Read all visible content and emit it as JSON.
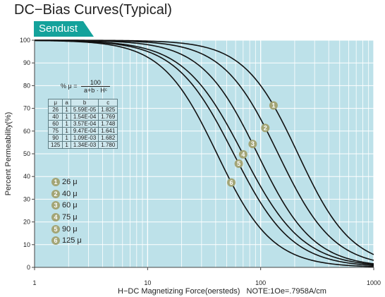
{
  "title": "DC−Bias Curves(Typical)",
  "badge": "Sendust",
  "colors": {
    "plot_bg": "#bde1e9",
    "grid": "#ffffff",
    "curve": "#111111",
    "badge": "#14a29b",
    "marker": "#a3a576"
  },
  "chart_data": {
    "type": "line",
    "title": "DC−Bias Curves(Typical)",
    "xlabel": "H−DC Magnetizing Force(oersteds)   NOTE:1Oe=.7958A/cm",
    "ylabel": "Percent Permeability(%)",
    "x_scale": "log",
    "xlim": [
      1,
      1000
    ],
    "ylim": [
      0,
      100
    ],
    "x_ticks": [
      "1",
      "10",
      "100",
      "1000"
    ],
    "y_ticks": [
      "0",
      "10",
      "20",
      "30",
      "40",
      "50",
      "60",
      "70",
      "80",
      "90",
      "100"
    ],
    "formula": {
      "prefix": "% μ =",
      "numerator": "100",
      "denominator": "a+b · Hᶜ"
    },
    "table": {
      "headers": [
        "μ",
        "a",
        "b",
        "c"
      ],
      "rows": [
        [
          "26",
          "1",
          "5.59E-05",
          "1.825"
        ],
        [
          "40",
          "1",
          "1.54E-04",
          "1.769"
        ],
        [
          "60",
          "1",
          "3.57E-04",
          "1.748"
        ],
        [
          "75",
          "1",
          "9.47E-04",
          "1.641"
        ],
        [
          "90",
          "1",
          "1.09E-03",
          "1.682"
        ],
        [
          "125",
          "1",
          "1.34E-03",
          "1.780"
        ]
      ]
    },
    "series": [
      {
        "name": "26 μ",
        "marker": "1",
        "a": 1,
        "b": 5.59e-05,
        "c": 1.825
      },
      {
        "name": "40 μ",
        "marker": "2",
        "a": 1,
        "b": 0.000154,
        "c": 1.769
      },
      {
        "name": "60 μ",
        "marker": "3",
        "a": 1,
        "b": 0.000357,
        "c": 1.748
      },
      {
        "name": "75 μ",
        "marker": "4",
        "a": 1,
        "b": 0.000947,
        "c": 1.641
      },
      {
        "name": "90 μ",
        "marker": "5",
        "a": 1,
        "b": 0.00109,
        "c": 1.682
      },
      {
        "name": "125 μ",
        "marker": "6",
        "a": 1,
        "b": 0.00134,
        "c": 1.78
      }
    ],
    "marker_x": [
      130,
      110,
      85,
      70,
      64,
      55
    ]
  }
}
